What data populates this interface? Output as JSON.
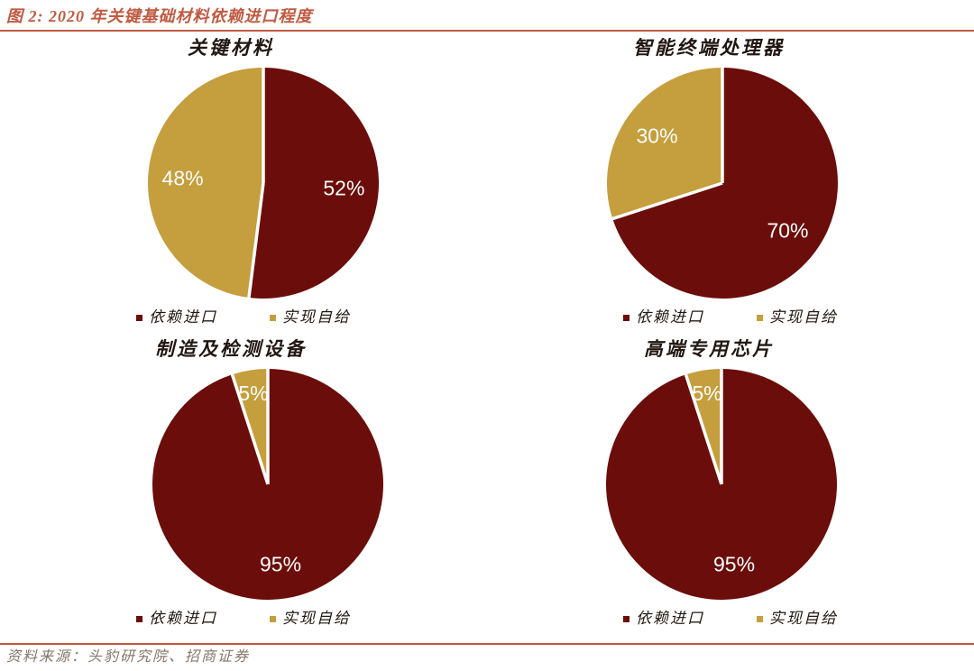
{
  "header": {
    "title": "图 2:  2020 年关键基础材料依赖进口程度"
  },
  "colors": {
    "accent": "#C05A41",
    "import": "#6B0D0A",
    "self": "#C59E3D",
    "slice_label": "#FFFFFF"
  },
  "legend": {
    "items": [
      {
        "label": "依赖进口",
        "color_key": "import"
      },
      {
        "label": "实现自给",
        "color_key": "self"
      }
    ]
  },
  "chart_data": [
    {
      "type": "pie",
      "title": "关键材料",
      "categories": [
        "依赖进口",
        "实现自给"
      ],
      "values": [
        52,
        48
      ],
      "slices": [
        {
          "label": "依赖进口",
          "value": 52,
          "display": "52%",
          "color_key": "import"
        },
        {
          "label": "实现自给",
          "value": 48,
          "display": "48%",
          "color_key": "self"
        }
      ],
      "start_angle_deg": 0,
      "direction": "clockwise",
      "legend_position": "bottom",
      "label_position": "inside"
    },
    {
      "type": "pie",
      "title": "智能终端处理器",
      "categories": [
        "依赖进口",
        "实现自给"
      ],
      "values": [
        70,
        30
      ],
      "slices": [
        {
          "label": "依赖进口",
          "value": 70,
          "display": "70%",
          "color_key": "import"
        },
        {
          "label": "实现自给",
          "value": 30,
          "display": "30%",
          "color_key": "self"
        }
      ],
      "start_angle_deg": 0,
      "direction": "clockwise",
      "legend_position": "bottom",
      "label_position": "inside"
    },
    {
      "type": "pie",
      "title": "制造及检测设备",
      "categories": [
        "依赖进口",
        "实现自给"
      ],
      "values": [
        95,
        5
      ],
      "slices": [
        {
          "label": "依赖进口",
          "value": 95,
          "display": "95%",
          "color_key": "import"
        },
        {
          "label": "实现自给",
          "value": 5,
          "display": "5%",
          "color_key": "self"
        }
      ],
      "start_angle_deg": 0,
      "direction": "clockwise",
      "legend_position": "bottom",
      "label_position": "inside"
    },
    {
      "type": "pie",
      "title": "高端专用芯片",
      "categories": [
        "依赖进口",
        "实现自给"
      ],
      "values": [
        95,
        5
      ],
      "slices": [
        {
          "label": "依赖进口",
          "value": 95,
          "display": "95%",
          "color_key": "import"
        },
        {
          "label": "实现自给",
          "value": 5,
          "display": "5%",
          "color_key": "self"
        }
      ],
      "start_angle_deg": 0,
      "direction": "clockwise",
      "legend_position": "bottom",
      "label_position": "inside"
    }
  ],
  "footer": {
    "source": "资料来源：头豹研究院、招商证券"
  }
}
